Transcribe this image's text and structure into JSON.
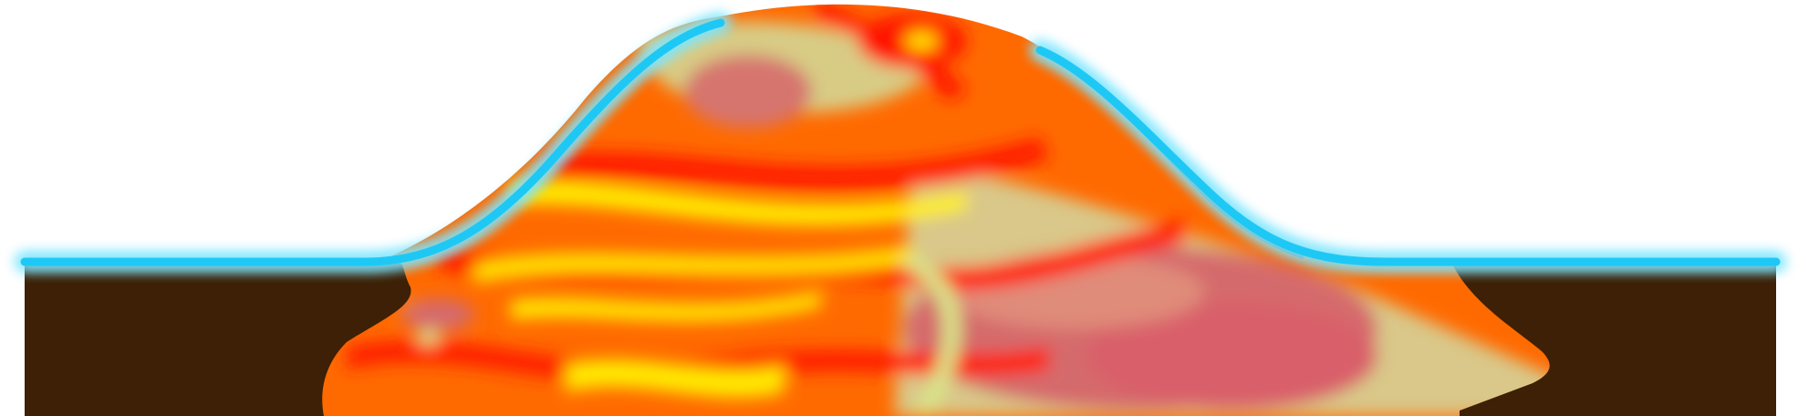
{
  "colors": {
    "background": "#ffffff",
    "ground": "#3d2005",
    "surface_line": "#1ec8f5",
    "surface_glow": "#7fe6ff",
    "ridge_shadow": "#2b5a60",
    "heat_low": "#ffff00",
    "heat_mid": "#ff7a00",
    "heat_high": "#ff1500",
    "heat_cool": "#d9e58a",
    "heat_pink": "#d9646a"
  },
  "layers": {
    "sky": {
      "icon": "none"
    },
    "ground": {
      "icon": "none"
    },
    "heat_body": {
      "icon": "none"
    },
    "surface": {
      "icon": "none"
    }
  }
}
